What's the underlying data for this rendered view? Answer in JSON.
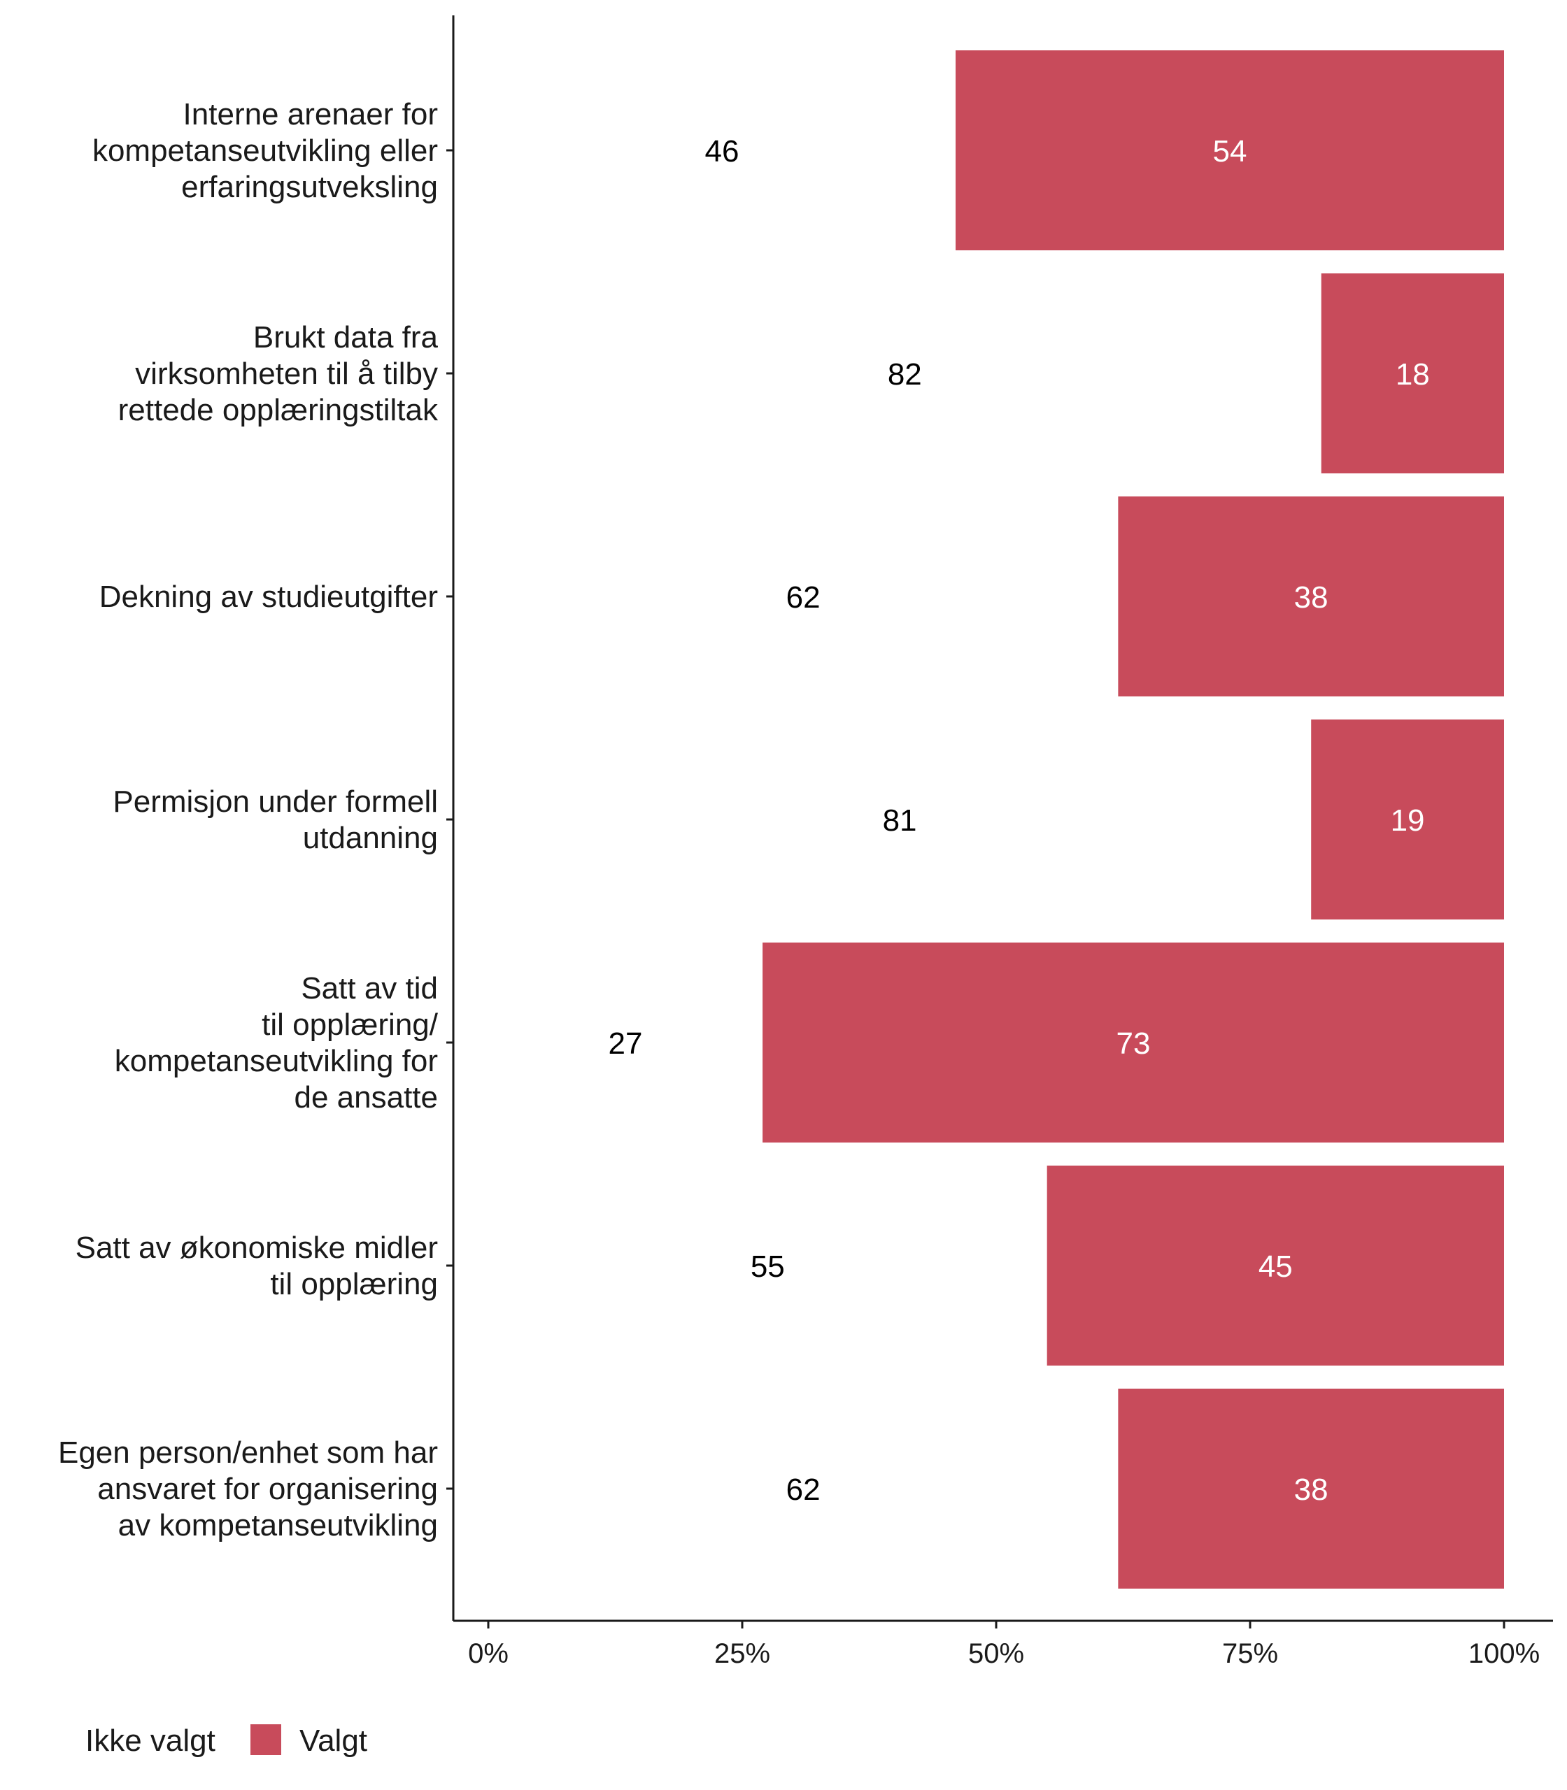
{
  "chart_data": {
    "type": "bar",
    "orientation": "horizontal",
    "stacked": true,
    "categories": [
      [
        "Interne arenaer for",
        "kompetanseutvikling eller",
        "erfaringsutveksling"
      ],
      [
        "Brukt data fra",
        "virksomheten til å tilby",
        "rettede opplæringstiltak"
      ],
      [
        "Dekning av studieutgifter"
      ],
      [
        "Permisjon under formell",
        "utdanning"
      ],
      [
        "Satt av tid",
        "til opplæring/",
        "kompetanseutvikling for",
        "de ansatte"
      ],
      [
        "Satt av økonomiske midler",
        "til opplæring"
      ],
      [
        "Egen person/enhet som har",
        "ansvaret for organisering",
        "av kompetanseutvikling"
      ]
    ],
    "series": [
      {
        "name": "Ikke valgt",
        "color": "#ffffff",
        "values": [
          46,
          82,
          62,
          81,
          27,
          55,
          62
        ]
      },
      {
        "name": "Valgt",
        "color": "#c84b5b",
        "values": [
          54,
          18,
          38,
          19,
          73,
          45,
          38
        ]
      }
    ],
    "xlim": [
      0,
      100
    ],
    "xticks": [
      "0%",
      "25%",
      "50%",
      "75%",
      "100%"
    ],
    "grid": false,
    "legend": "bottom-left",
    "title": "",
    "xlabel": "",
    "ylabel": ""
  }
}
